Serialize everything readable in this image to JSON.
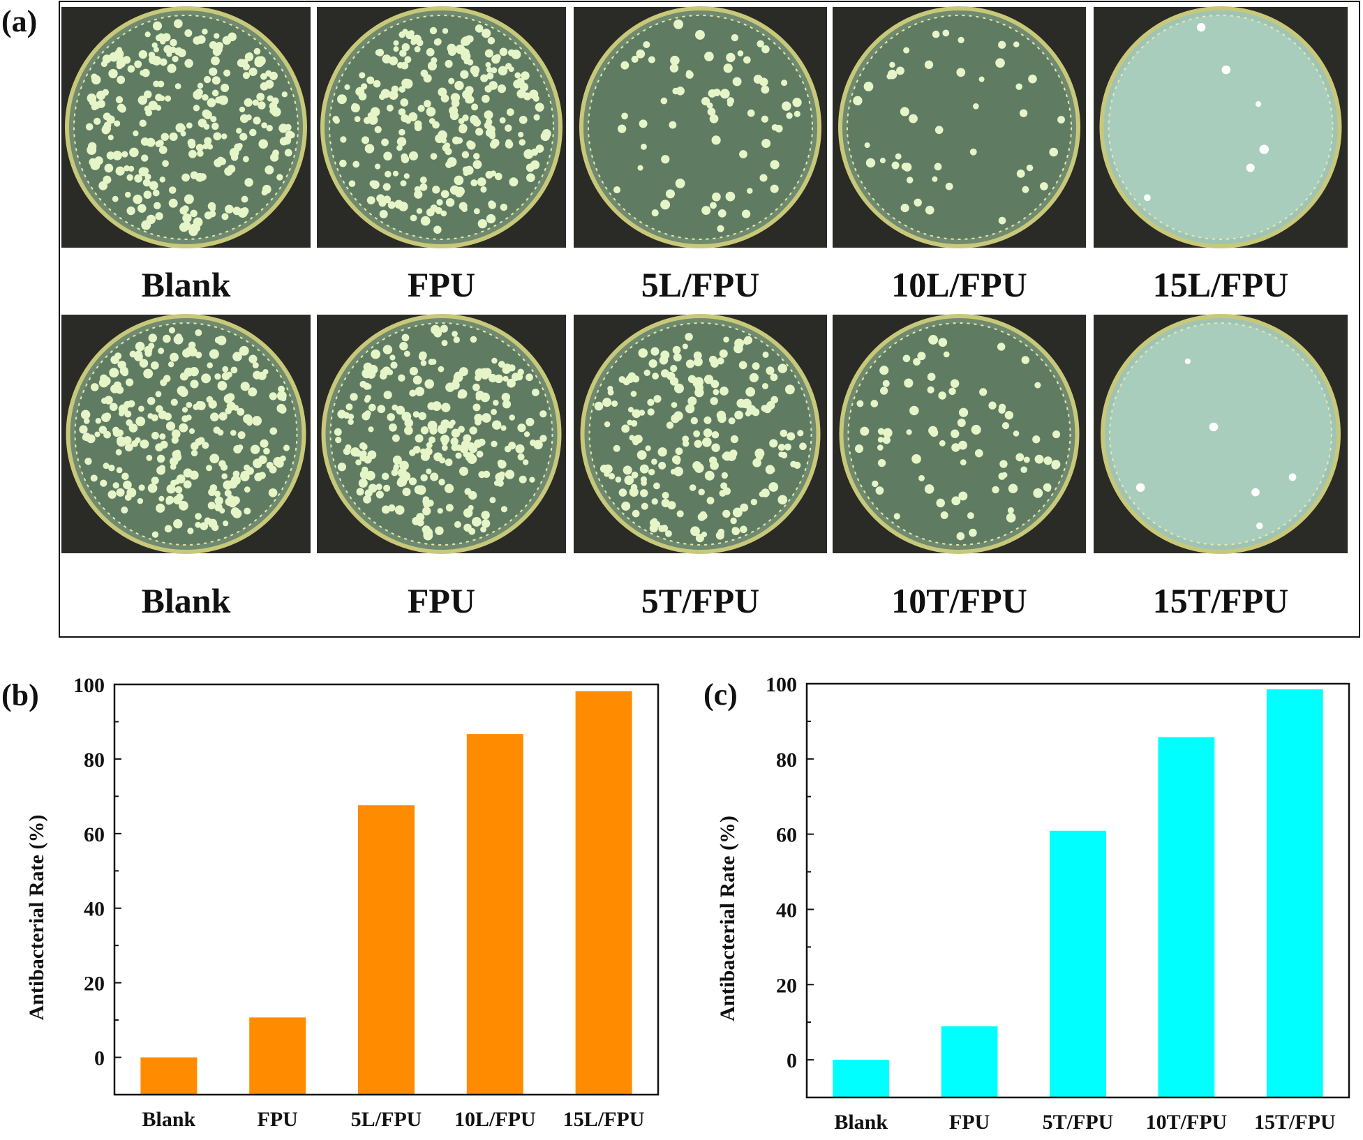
{
  "panel_a": {
    "label": "(a)",
    "row1": [
      "Blank",
      "FPU",
      "5L/FPU",
      "10L/FPU",
      "15L/FPU"
    ],
    "row2": [
      "Blank",
      "FPU",
      "5T/FPU",
      "10T/FPU",
      "15T/FPU"
    ]
  },
  "chart_data": [
    {
      "panel_label": "(b)",
      "type": "bar",
      "title": "",
      "xlabel": "",
      "ylabel": "Antibacterial Rate (%)",
      "categories": [
        "Blank",
        "FPU",
        "5L/FPU",
        "10L/FPU",
        "15L/FPU"
      ],
      "values": [
        0,
        10.7,
        67.6,
        86.7,
        98.2
      ],
      "ylim": [
        -10,
        100
      ],
      "yticks": [
        0,
        20,
        40,
        60,
        80,
        100
      ],
      "color": "#ff8c00",
      "grid": false
    },
    {
      "panel_label": "(c)",
      "type": "bar",
      "title": "",
      "xlabel": "",
      "ylabel": "Antibacterial Rate (%)",
      "categories": [
        "Blank",
        "FPU",
        "5T/FPU",
        "10T/FPU",
        "15T/FPU"
      ],
      "values": [
        0,
        8.9,
        60.9,
        85.8,
        98.5
      ],
      "ylim": [
        -10,
        100
      ],
      "yticks": [
        0,
        20,
        40,
        60,
        80,
        100
      ],
      "color": "#00ffff",
      "grid": false
    }
  ]
}
